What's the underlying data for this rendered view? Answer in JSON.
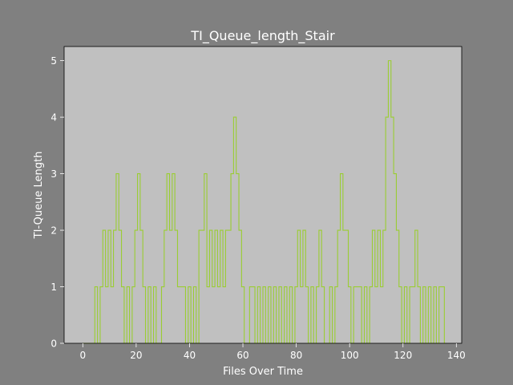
{
  "chart_data": {
    "type": "line",
    "style": "step",
    "title": "TI_Queue_length_Stair",
    "xlabel": "Files Over Time",
    "ylabel": "TI-Queue Length",
    "xlim": [
      -7,
      142
    ],
    "ylim": [
      0,
      5.25
    ],
    "xticks": [
      0,
      20,
      40,
      60,
      80,
      100,
      120,
      140
    ],
    "yticks": [
      0,
      1,
      2,
      3,
      4,
      5
    ],
    "grid": false,
    "colors": {
      "figure_bg": "#808080",
      "plot_bg": "#c0c0c0",
      "line": "#9acd32",
      "text": "#ffffff"
    },
    "series": [
      {
        "x": [
          0,
          1,
          2,
          3,
          4,
          5,
          6,
          7,
          8,
          9,
          10,
          11,
          12,
          13,
          14,
          15,
          16,
          17,
          18,
          19,
          20,
          21,
          22,
          23,
          24,
          25,
          26,
          27,
          28,
          29,
          30,
          31,
          32,
          33,
          34,
          35,
          36,
          37,
          38,
          39,
          40,
          41,
          42,
          43,
          44,
          45,
          46,
          47,
          48,
          49,
          50,
          51,
          52,
          53,
          54,
          55,
          56,
          57,
          58,
          59,
          60,
          61,
          62,
          63,
          64,
          65,
          66,
          67,
          68,
          69,
          70,
          71,
          72,
          73,
          74,
          75,
          76,
          77,
          78,
          79,
          80,
          81,
          82,
          83,
          84,
          85,
          86,
          87,
          88,
          89,
          90,
          91,
          92,
          93,
          94,
          95,
          96,
          97,
          98,
          99,
          100,
          101,
          102,
          103,
          104,
          105,
          106,
          107,
          108,
          109,
          110,
          111,
          112,
          113,
          114,
          115,
          116,
          117,
          118,
          119,
          120,
          121,
          122,
          123,
          124,
          125,
          126,
          127,
          128,
          129,
          130,
          131,
          132,
          133,
          134,
          135,
          136
        ],
        "y": [
          0,
          0,
          0,
          0,
          0,
          1,
          0,
          1,
          2,
          1,
          2,
          1,
          2,
          3,
          2,
          1,
          0,
          1,
          0,
          1,
          2,
          3,
          2,
          1,
          0,
          1,
          0,
          1,
          0,
          0,
          1,
          2,
          3,
          2,
          3,
          2,
          1,
          1,
          1,
          0,
          1,
          0,
          1,
          0,
          2,
          2,
          3,
          1,
          2,
          1,
          2,
          1,
          2,
          1,
          2,
          2,
          3,
          4,
          3,
          2,
          1,
          0,
          0,
          1,
          1,
          0,
          1,
          0,
          1,
          0,
          1,
          0,
          1,
          0,
          1,
          0,
          1,
          0,
          1,
          0,
          1,
          2,
          1,
          2,
          1,
          0,
          1,
          0,
          1,
          2,
          1,
          0,
          0,
          1,
          0,
          1,
          2,
          3,
          2,
          2,
          1,
          0,
          1,
          1,
          1,
          0,
          1,
          0,
          1,
          2,
          1,
          2,
          1,
          2,
          4,
          5,
          4,
          3,
          2,
          1,
          0,
          1,
          0,
          1,
          1,
          2,
          1,
          0,
          1,
          0,
          1,
          0,
          1,
          0,
          1,
          1,
          0
        ]
      }
    ]
  }
}
